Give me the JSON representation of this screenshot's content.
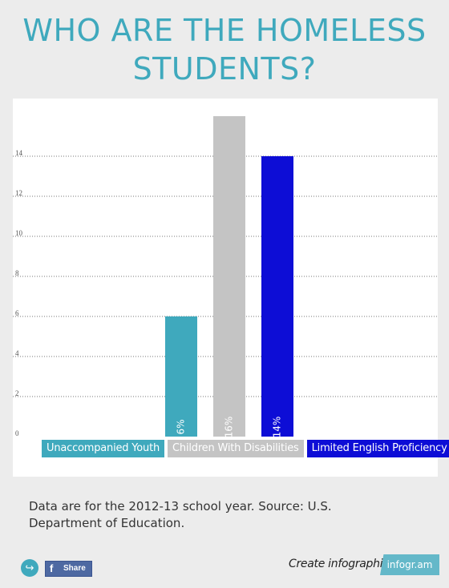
{
  "header": {
    "title_line1": "WHO ARE THE HOMELESS",
    "title_line2": "STUDENTS?"
  },
  "chart_data": {
    "type": "bar",
    "categories": [
      "Unaccompanied Youth",
      "Children With Disabilities",
      "Limited English Proficiency"
    ],
    "values": [
      6,
      16,
      14
    ],
    "data_labels": [
      "6%",
      "16%",
      "14%"
    ],
    "colors": [
      "#3fa9bd",
      "#c4c4c4",
      "#0d0dd6"
    ],
    "title": "",
    "xlabel": "",
    "ylabel": "",
    "ylim": [
      0,
      16
    ],
    "yticks": [
      0,
      2,
      4,
      6,
      8,
      10,
      12,
      14
    ],
    "grid": true,
    "legend": "bottom"
  },
  "source": {
    "text": "Data are for the 2012-13 school year. Source: U.S. Department of Education."
  },
  "footer": {
    "share_label": "Share",
    "fb_glyph": "f",
    "share_glyph": "↪",
    "create_text": "Create infographics",
    "brand": "infogr.am"
  }
}
